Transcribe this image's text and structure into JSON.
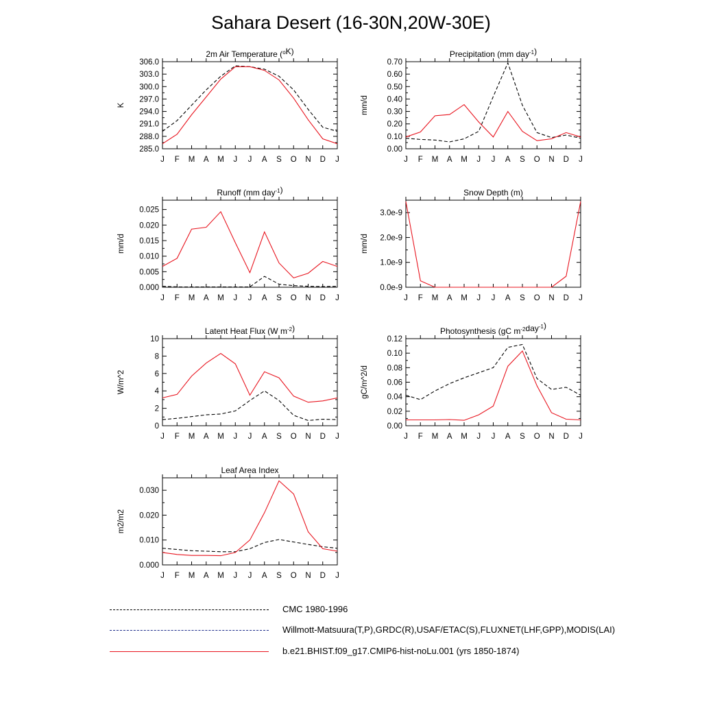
{
  "page": {
    "title": "Sahara Desert (16-30N,20W-30E)"
  },
  "colors": {
    "model": "#e8141e",
    "obs": "#000000",
    "obs_alt": "#1a2a8a"
  },
  "chart_data": [
    {
      "type": "line",
      "title": "2m Air Temperature (°K)",
      "title_parts": [
        {
          "t": "2m Air Temperature ("
        },
        {
          "t": "o",
          "sup": true
        },
        {
          "t": "K)"
        }
      ],
      "ylabel": "K",
      "ylim": [
        285.0,
        306.0
      ],
      "yticks": [
        285.0,
        288.0,
        291.0,
        294.0,
        297.0,
        300.0,
        303.0,
        306.0
      ],
      "ytick_labels": [
        "285.0",
        "288.0",
        "291.0",
        "294.0",
        "297.0",
        "300.0",
        "303.0",
        "306.0"
      ],
      "x": [
        "J",
        "F",
        "M",
        "A",
        "M",
        "J",
        "J",
        "A",
        "S",
        "O",
        "N",
        "D",
        "J"
      ],
      "series": [
        {
          "role": "obs",
          "values": [
            289.2,
            291.8,
            295.5,
            299.2,
            302.5,
            305.0,
            304.8,
            304.2,
            302.5,
            299.2,
            294.5,
            290.2,
            289.2
          ]
        },
        {
          "role": "model",
          "values": [
            286.2,
            288.5,
            293.2,
            297.5,
            301.8,
            304.8,
            304.8,
            303.9,
            301.6,
            297.2,
            292.0,
            287.4,
            286.2
          ]
        }
      ]
    },
    {
      "type": "line",
      "title": "Precipitation (mm day-1)",
      "title_parts": [
        {
          "t": "Precipitation (mm day"
        },
        {
          "t": "-1",
          "sup": true
        },
        {
          "t": ")"
        }
      ],
      "ylabel": "mm/d",
      "ylim": [
        0,
        0.7
      ],
      "yticks": [
        0,
        0.1,
        0.2,
        0.3,
        0.4,
        0.5,
        0.6,
        0.7
      ],
      "ytick_labels": [
        "0.00",
        "0.10",
        "0.20",
        "0.30",
        "0.40",
        "0.50",
        "0.60",
        "0.70"
      ],
      "x": [
        "J",
        "F",
        "M",
        "A",
        "M",
        "J",
        "J",
        "A",
        "S",
        "O",
        "N",
        "D",
        "J"
      ],
      "series": [
        {
          "role": "obs",
          "values": [
            0.085,
            0.075,
            0.07,
            0.055,
            0.08,
            0.14,
            0.42,
            0.69,
            0.35,
            0.13,
            0.09,
            0.11,
            0.085
          ]
        },
        {
          "role": "model",
          "values": [
            0.095,
            0.135,
            0.265,
            0.275,
            0.355,
            0.215,
            0.095,
            0.3,
            0.14,
            0.065,
            0.08,
            0.13,
            0.095
          ]
        }
      ]
    },
    {
      "type": "line",
      "title": "Runoff (mm day-1)",
      "title_parts": [
        {
          "t": "Runoff (mm day"
        },
        {
          "t": "-1",
          "sup": true
        },
        {
          "t": ")"
        }
      ],
      "ylabel": "mm/d",
      "ylim": [
        0,
        0.028
      ],
      "yticks": [
        0,
        0.005,
        0.01,
        0.015,
        0.02,
        0.025
      ],
      "ytick_labels": [
        "0.000",
        "0.005",
        "0.010",
        "0.015",
        "0.020",
        "0.025"
      ],
      "x": [
        "J",
        "F",
        "M",
        "A",
        "M",
        "J",
        "J",
        "A",
        "S",
        "O",
        "N",
        "D",
        "J"
      ],
      "series": [
        {
          "role": "obs",
          "values": [
            0.0003,
            0.0001,
            0.0001,
            0.0001,
            0.0001,
            0.0001,
            0.0001,
            0.0035,
            0.001,
            0.0005,
            0.0003,
            0.0002,
            0.0003
          ]
        },
        {
          "role": "model",
          "values": [
            0.0067,
            0.0093,
            0.0187,
            0.0193,
            0.0243,
            0.0143,
            0.0047,
            0.0178,
            0.0078,
            0.003,
            0.0045,
            0.0083,
            0.0067
          ]
        }
      ]
    },
    {
      "type": "line",
      "title": "Snow Depth (m)",
      "title_parts": [
        {
          "t": "Snow Depth (m)"
        }
      ],
      "ylabel": "mm/d",
      "ylim": [
        0,
        3.5e-09
      ],
      "yticks": [
        0,
        1e-09,
        2e-09,
        3e-09
      ],
      "ytick_labels": [
        "0.0e-9",
        "1.0e-9",
        "2.0e-9",
        "3.0e-9"
      ],
      "x": [
        "J",
        "F",
        "M",
        "A",
        "M",
        "J",
        "J",
        "A",
        "S",
        "O",
        "N",
        "D",
        "J"
      ],
      "series": [
        {
          "role": "obs",
          "values": [
            0,
            0,
            0,
            0,
            0,
            0,
            0,
            0,
            0,
            0,
            0,
            0,
            0
          ]
        },
        {
          "role": "model",
          "values": [
            3.45e-09,
            2.6e-10,
            0,
            0,
            0,
            0,
            0,
            0,
            0,
            0,
            0,
            4.4e-10,
            3.45e-09
          ]
        }
      ]
    },
    {
      "type": "line",
      "title": "Latent Heat Flux (W m-2)",
      "title_parts": [
        {
          "t": "Latent Heat Flux (W m"
        },
        {
          "t": "-2",
          "sup": true
        },
        {
          "t": ")"
        }
      ],
      "ylabel": "W/m^2",
      "ylim": [
        0,
        10
      ],
      "yticks": [
        0,
        2,
        4,
        6,
        8,
        10
      ],
      "ytick_labels": [
        "0",
        "2",
        "4",
        "6",
        "8",
        "10"
      ],
      "x": [
        "J",
        "F",
        "M",
        "A",
        "M",
        "J",
        "J",
        "A",
        "S",
        "O",
        "N",
        "D",
        "J"
      ],
      "series": [
        {
          "role": "obs",
          "values": [
            0.7,
            0.85,
            1.05,
            1.25,
            1.35,
            1.7,
            2.9,
            4.0,
            2.9,
            1.2,
            0.6,
            0.75,
            0.7
          ]
        },
        {
          "role": "model",
          "values": [
            3.2,
            3.6,
            5.7,
            7.2,
            8.3,
            7.1,
            3.5,
            6.2,
            5.5,
            3.4,
            2.7,
            2.85,
            3.2
          ]
        }
      ]
    },
    {
      "type": "line",
      "title": "Photosynthesis (gC m-2day-1)",
      "title_parts": [
        {
          "t": "Photosynthesis (gC m"
        },
        {
          "t": "-2",
          "sup": true
        },
        {
          "t": "day"
        },
        {
          "t": "-1",
          "sup": true
        },
        {
          "t": ")"
        }
      ],
      "ylabel": "gC/m^2/d",
      "ylim": [
        0,
        0.12
      ],
      "yticks": [
        0,
        0.02,
        0.04,
        0.06,
        0.08,
        0.1,
        0.12
      ],
      "ytick_labels": [
        "0.00",
        "0.02",
        "0.04",
        "0.06",
        "0.08",
        "0.10",
        "0.12"
      ],
      "x": [
        "J",
        "F",
        "M",
        "A",
        "M",
        "J",
        "J",
        "A",
        "S",
        "O",
        "N",
        "D",
        "J"
      ],
      "series": [
        {
          "role": "obs",
          "values": [
            0.042,
            0.036,
            0.048,
            0.058,
            0.066,
            0.073,
            0.08,
            0.108,
            0.112,
            0.065,
            0.05,
            0.053,
            0.042
          ]
        },
        {
          "role": "model",
          "values": [
            0.008,
            0.008,
            0.008,
            0.0085,
            0.0075,
            0.015,
            0.027,
            0.082,
            0.103,
            0.055,
            0.018,
            0.009,
            0.008
          ]
        }
      ]
    },
    {
      "type": "line",
      "title": "Leaf Area Index",
      "title_parts": [
        {
          "t": "Leaf Area Index"
        }
      ],
      "ylabel": "m2/m2",
      "ylim": [
        0,
        0.035
      ],
      "yticks": [
        0,
        0.01,
        0.02,
        0.03
      ],
      "ytick_labels": [
        "0.000",
        "0.010",
        "0.020",
        "0.030"
      ],
      "x": [
        "J",
        "F",
        "M",
        "A",
        "M",
        "J",
        "J",
        "A",
        "S",
        "O",
        "N",
        "D",
        "J"
      ],
      "series": [
        {
          "role": "obs",
          "values": [
            0.0067,
            0.0062,
            0.0057,
            0.0055,
            0.0053,
            0.0053,
            0.0065,
            0.009,
            0.0102,
            0.0092,
            0.0082,
            0.0073,
            0.0067
          ]
        },
        {
          "role": "model",
          "values": [
            0.005,
            0.0042,
            0.0038,
            0.0038,
            0.0037,
            0.005,
            0.01,
            0.021,
            0.0338,
            0.0285,
            0.0133,
            0.0065,
            0.0055
          ]
        }
      ]
    }
  ],
  "legend": [
    {
      "label": "CMC 1980-1996",
      "style": "dashed",
      "color": "#000000"
    },
    {
      "label": "Willmott-Matsuura(T,P),GRDC(R),USAF/ETAC(S),FLUXNET(LHF,GPP),MODIS(LAI)",
      "style": "dashed-mixed",
      "color": "#1a2a8a"
    },
    {
      "label": "b.e21.BHIST.f09_g17.CMIP6-hist-noLu.001 (yrs 1850-1874)",
      "style": "solid",
      "color": "#e8141e"
    }
  ]
}
